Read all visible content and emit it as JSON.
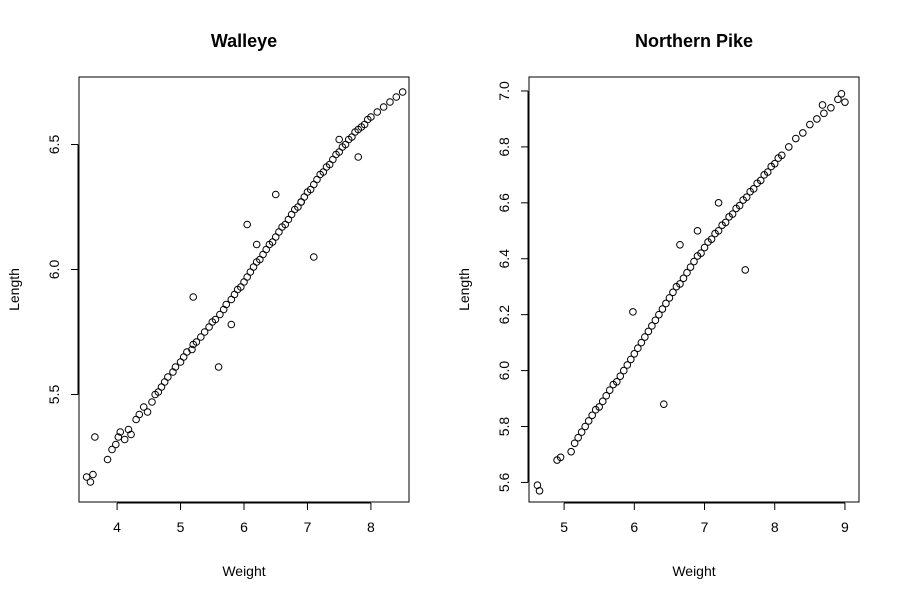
{
  "chart_data": [
    {
      "type": "scatter",
      "title": "Walleye",
      "xlabel": "Weight",
      "ylabel": "Length",
      "xlim": [
        3.4,
        8.6
      ],
      "ylim": [
        5.07,
        6.77
      ],
      "x_ticks": [
        4,
        5,
        6,
        7,
        8
      ],
      "y_ticks": [
        5.5,
        6.0,
        6.5
      ],
      "x_tick_labels": [
        "4",
        "5",
        "6",
        "7",
        "8"
      ],
      "y_tick_labels": [
        "5.5",
        "6.0",
        "6.5"
      ],
      "grid": false,
      "legend": "none",
      "series": [
        {
          "marker": "open-circle",
          "color": "#000000",
          "x": [
            3.52,
            3.58,
            3.62,
            3.65,
            3.85,
            3.92,
            3.98,
            4.02,
            4.05,
            4.12,
            4.18,
            4.22,
            4.3,
            4.35,
            4.42,
            4.48,
            4.55,
            4.6,
            4.65,
            4.7,
            4.75,
            4.8,
            4.88,
            4.92,
            5.0,
            5.05,
            5.1,
            5.18,
            5.2,
            5.25,
            5.32,
            5.38,
            5.45,
            5.5,
            5.55,
            5.62,
            5.68,
            5.72,
            5.8,
            5.85,
            5.9,
            5.95,
            6.0,
            6.05,
            6.1,
            6.15,
            6.2,
            6.25,
            6.3,
            6.35,
            6.4,
            6.45,
            6.5,
            6.55,
            6.6,
            6.65,
            6.7,
            6.75,
            6.8,
            6.85,
            6.9,
            6.95,
            7.0,
            7.05,
            7.1,
            7.15,
            7.2,
            7.25,
            7.3,
            7.35,
            7.4,
            7.45,
            7.5,
            7.55,
            7.6,
            7.65,
            7.7,
            7.75,
            7.8,
            7.85,
            7.9,
            7.95,
            8.0,
            8.1,
            8.2,
            8.3,
            8.4,
            8.5,
            5.2,
            6.05,
            6.9,
            7.5,
            5.6,
            7.1,
            6.2,
            5.8,
            6.5,
            7.8
          ],
          "y": [
            5.17,
            5.15,
            5.18,
            5.33,
            5.24,
            5.28,
            5.3,
            5.33,
            5.35,
            5.32,
            5.36,
            5.34,
            5.4,
            5.42,
            5.45,
            5.43,
            5.47,
            5.5,
            5.51,
            5.53,
            5.55,
            5.57,
            5.59,
            5.61,
            5.63,
            5.65,
            5.67,
            5.68,
            5.7,
            5.71,
            5.73,
            5.75,
            5.77,
            5.79,
            5.8,
            5.82,
            5.84,
            5.86,
            5.88,
            5.9,
            5.92,
            5.93,
            5.95,
            5.97,
            5.99,
            6.01,
            6.03,
            6.04,
            6.06,
            6.08,
            6.1,
            6.11,
            6.13,
            6.15,
            6.17,
            6.18,
            6.2,
            6.22,
            6.24,
            6.25,
            6.27,
            6.29,
            6.31,
            6.32,
            6.34,
            6.36,
            6.38,
            6.39,
            6.41,
            6.42,
            6.44,
            6.46,
            6.47,
            6.49,
            6.5,
            6.52,
            6.53,
            6.55,
            6.56,
            6.57,
            6.58,
            6.6,
            6.61,
            6.63,
            6.65,
            6.67,
            6.69,
            6.71,
            5.89,
            6.18,
            6.27,
            6.52,
            5.61,
            6.05,
            6.1,
            5.78,
            6.3,
            6.45
          ]
        }
      ]
    },
    {
      "type": "scatter",
      "title": "Northern Pike",
      "xlabel": "Weight",
      "ylabel": "Length",
      "xlim": [
        4.5,
        9.2
      ],
      "ylim": [
        5.53,
        7.05
      ],
      "x_ticks": [
        5,
        6,
        7,
        8,
        9
      ],
      "y_ticks": [
        5.6,
        5.8,
        6.0,
        6.2,
        6.4,
        6.6,
        6.8,
        7.0
      ],
      "x_tick_labels": [
        "5",
        "6",
        "7",
        "8",
        "9"
      ],
      "y_tick_labels": [
        "5.6",
        "5.8",
        "6.0",
        "6.2",
        "6.4",
        "6.6",
        "6.8",
        "7.0"
      ],
      "grid": false,
      "legend": "none",
      "series": [
        {
          "marker": "open-circle",
          "color": "#000000",
          "x": [
            4.62,
            4.65,
            4.9,
            4.95,
            5.1,
            5.15,
            5.2,
            5.25,
            5.3,
            5.35,
            5.4,
            5.45,
            5.5,
            5.55,
            5.6,
            5.65,
            5.7,
            5.75,
            5.8,
            5.85,
            5.9,
            5.95,
            6.0,
            6.05,
            6.1,
            6.15,
            6.2,
            6.25,
            6.3,
            6.35,
            6.4,
            6.45,
            6.5,
            6.55,
            6.6,
            6.65,
            6.7,
            6.75,
            6.8,
            6.85,
            6.9,
            6.95,
            7.0,
            7.05,
            7.1,
            7.15,
            7.2,
            7.25,
            7.3,
            7.35,
            7.4,
            7.45,
            7.5,
            7.55,
            7.6,
            7.65,
            7.7,
            7.75,
            7.8,
            7.85,
            7.9,
            7.95,
            8.0,
            8.05,
            8.1,
            8.2,
            8.3,
            8.4,
            8.5,
            8.6,
            8.7,
            8.8,
            8.9,
            8.95,
            9.0,
            6.42,
            5.98,
            7.58,
            6.65,
            8.68,
            7.2,
            6.9
          ],
          "y": [
            5.59,
            5.57,
            5.68,
            5.69,
            5.71,
            5.74,
            5.76,
            5.78,
            5.8,
            5.82,
            5.84,
            5.86,
            5.87,
            5.89,
            5.91,
            5.93,
            5.95,
            5.96,
            5.98,
            6.0,
            6.02,
            6.04,
            6.06,
            6.08,
            6.1,
            6.12,
            6.14,
            6.16,
            6.18,
            6.2,
            6.22,
            6.24,
            6.26,
            6.28,
            6.3,
            6.31,
            6.33,
            6.35,
            6.37,
            6.39,
            6.41,
            6.42,
            6.44,
            6.46,
            6.47,
            6.49,
            6.5,
            6.52,
            6.53,
            6.55,
            6.56,
            6.58,
            6.59,
            6.61,
            6.62,
            6.64,
            6.65,
            6.67,
            6.68,
            6.7,
            6.71,
            6.73,
            6.74,
            6.76,
            6.77,
            6.8,
            6.83,
            6.85,
            6.88,
            6.9,
            6.92,
            6.94,
            6.97,
            6.99,
            6.96,
            5.88,
            6.21,
            6.36,
            6.45,
            6.95,
            6.6,
            6.5
          ]
        }
      ]
    }
  ]
}
